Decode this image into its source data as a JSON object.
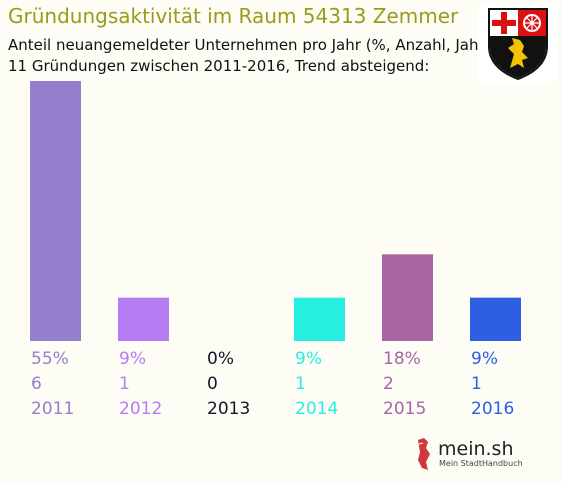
{
  "header": {
    "title": "Gründungsaktivität im Raum 54313 Zemmer",
    "subtitle_line1": "Anteil neuangemeldeter Unternehmen pro Jahr (%, Anzahl, Jahr)",
    "subtitle_line2": "11 Gründungen zwischen 2011-2016, Trend absteigend:"
  },
  "crest": {
    "icon": "rhineland-palatinate-coat-of-arms-icon"
  },
  "logo": {
    "name": "mein.sh",
    "tagline": "Mein StadtHandbuch"
  },
  "chart_data": {
    "type": "bar",
    "categories": [
      "2011",
      "2012",
      "2013",
      "2014",
      "2015",
      "2016"
    ],
    "percent_labels": [
      "55%",
      "9%",
      "0%",
      "9%",
      "18%",
      "9%"
    ],
    "count_labels": [
      "6",
      "1",
      "0",
      "1",
      "2",
      "1"
    ],
    "values": [
      6,
      1,
      0,
      1,
      2,
      1
    ],
    "colors": [
      "#937fcc",
      "#b67cf4",
      "#111827",
      "#26eee0",
      "#a964a4",
      "#2c5fe2"
    ],
    "title": "",
    "xlabel": "",
    "ylabel": "",
    "ylim": [
      0,
      6
    ],
    "grid": false
  }
}
